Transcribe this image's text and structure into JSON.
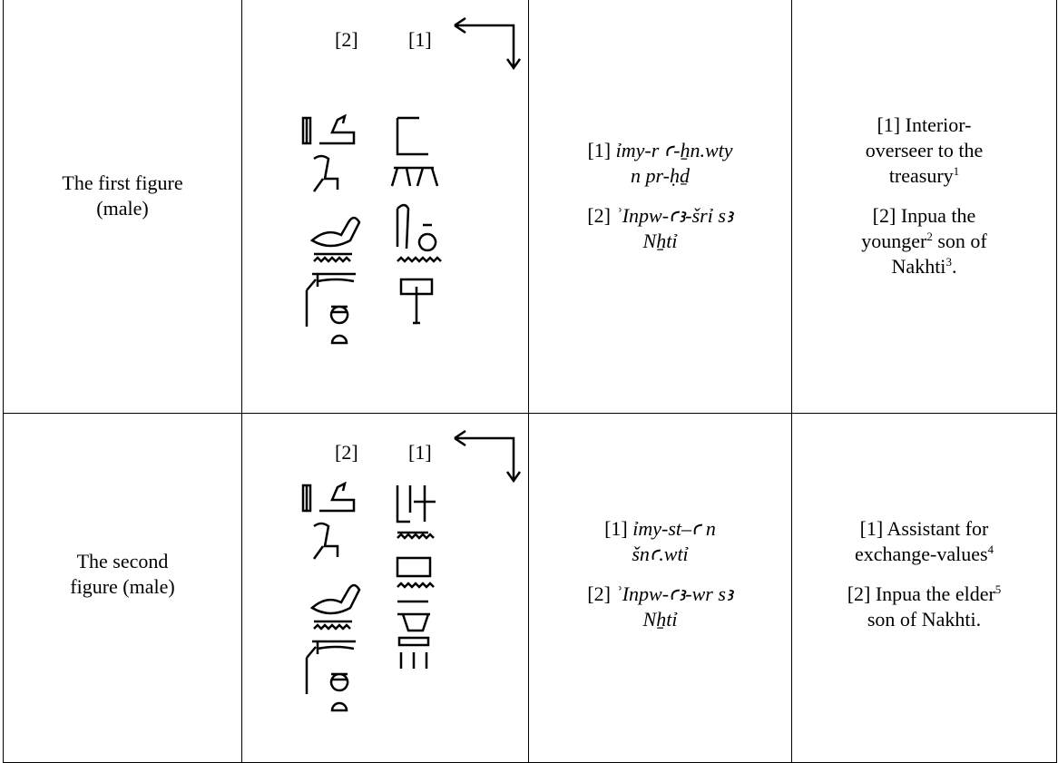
{
  "table": {
    "rows": [
      {
        "label": [
          "The first figure",
          "(male)"
        ],
        "glyph_labels": [
          "[2]",
          "[1]"
        ],
        "transliteration": [
          [
            [
              {
                "text": "[1] ",
                "style": "plain"
              },
              {
                "text": "ỉmy-r ꜥ-ẖn.wty",
                "style": "italic"
              }
            ],
            [
              {
                "text": "n pr-ḥḏ",
                "style": "italic"
              }
            ]
          ],
          [
            [
              {
                "text": "[2] ",
                "style": "plain"
              },
              {
                "text": "ʾInpw-ꜥꜣ-šrỉ sꜣ",
                "style": "italic"
              }
            ],
            [
              {
                "text": "Nẖtỉ",
                "style": "italic"
              }
            ]
          ]
        ],
        "translation": [
          [
            [
              {
                "text": "[1] Interior-",
                "style": "plain"
              }
            ],
            [
              {
                "text": "overseer to the",
                "style": "plain"
              }
            ],
            [
              {
                "text": "treasury",
                "style": "plain"
              },
              {
                "text": "1",
                "style": "sup"
              }
            ]
          ],
          [
            [
              {
                "text": "[2] Inpua the",
                "style": "plain"
              }
            ],
            [
              {
                "text": "younger",
                "style": "plain"
              },
              {
                "text": "2",
                "style": "sup"
              },
              {
                "text": " son of",
                "style": "plain"
              }
            ],
            [
              {
                "text": "Nakhti",
                "style": "plain"
              },
              {
                "text": "3",
                "style": "sup"
              },
              {
                "text": ".",
                "style": "plain"
              }
            ]
          ]
        ]
      },
      {
        "label": [
          "The second",
          "figure (male)"
        ],
        "glyph_labels": [
          "[2]",
          "[1]"
        ],
        "transliteration": [
          [
            [
              {
                "text": "[1] ",
                "style": "plain"
              },
              {
                "text": "ỉmy-st–ꜥ n",
                "style": "italic"
              }
            ],
            [
              {
                "text": "šnꜥ.wtỉ",
                "style": "italic"
              }
            ]
          ],
          [
            [
              {
                "text": "[2] ",
                "style": "plain"
              },
              {
                "text": "ʾInpw-ꜥꜣ-wr sꜣ",
                "style": "italic"
              }
            ],
            [
              {
                "text": "Nẖtỉ",
                "style": "italic"
              }
            ]
          ]
        ],
        "translation": [
          [
            [
              {
                "text": "[1] Assistant for",
                "style": "plain"
              }
            ],
            [
              {
                "text": "exchange-values",
                "style": "plain"
              },
              {
                "text": "4",
                "style": "sup"
              }
            ]
          ],
          [
            [
              {
                "text": "[2] Inpua the elder",
                "style": "plain"
              },
              {
                "text": "5",
                "style": "sup"
              }
            ],
            [
              {
                "text": "son of Nakhti.",
                "style": "plain"
              }
            ]
          ]
        ]
      }
    ]
  }
}
